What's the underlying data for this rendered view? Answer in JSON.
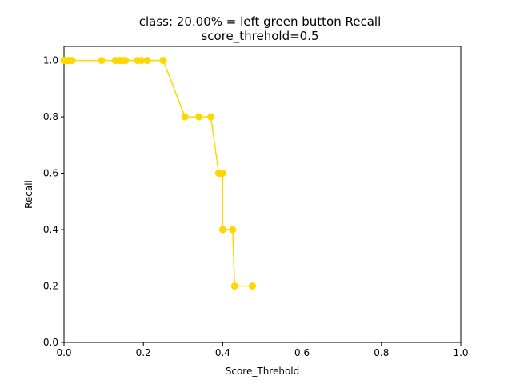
{
  "chart_data": {
    "type": "line",
    "title": "class: 20.00% = left green button Recall",
    "subtitle": "score_threhold=0.5",
    "xlabel": "Score_Threhold",
    "ylabel": "Recall",
    "xlim": [
      0.0,
      1.0
    ],
    "ylim": [
      0.0,
      1.05
    ],
    "xticks": [
      "0.0",
      "0.2",
      "0.4",
      "0.6",
      "0.8",
      "1.0"
    ],
    "yticks": [
      "0.0",
      "0.2",
      "0.4",
      "0.6",
      "0.8",
      "1.0"
    ],
    "grid": false,
    "legend": "none",
    "series": [
      {
        "color": "#ffd700",
        "marker": "circle",
        "x": [
          0.0,
          0.005,
          0.01,
          0.015,
          0.02,
          0.095,
          0.13,
          0.14,
          0.145,
          0.15,
          0.155,
          0.185,
          0.195,
          0.21,
          0.25,
          0.305,
          0.34,
          0.37,
          0.39,
          0.395,
          0.4,
          0.4,
          0.425,
          0.43,
          0.475
        ],
        "y": [
          1.0,
          1.0,
          1.0,
          1.0,
          1.0,
          1.0,
          1.0,
          1.0,
          1.0,
          1.0,
          1.0,
          1.0,
          1.0,
          1.0,
          1.0,
          0.8,
          0.8,
          0.8,
          0.6,
          0.6,
          0.6,
          0.4,
          0.4,
          0.2,
          0.2
        ]
      }
    ]
  }
}
